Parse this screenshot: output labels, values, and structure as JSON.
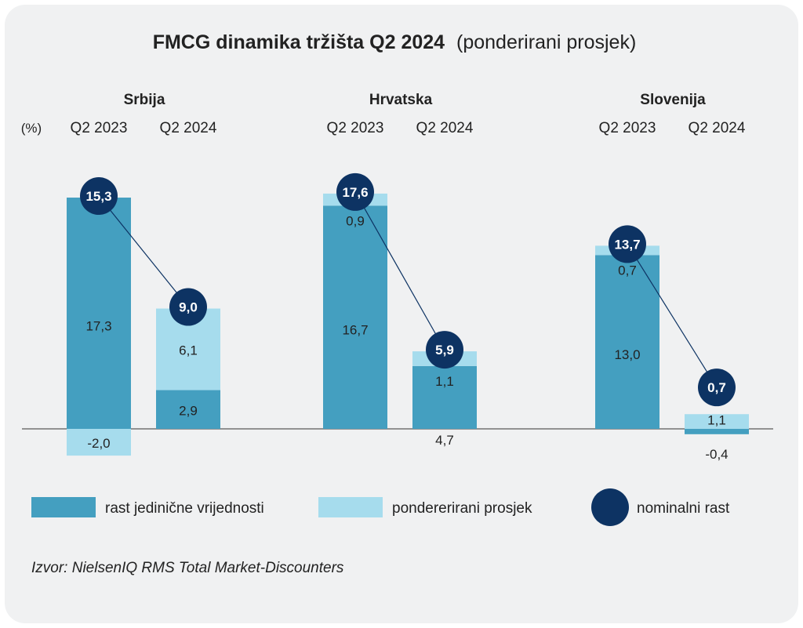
{
  "chart_data": {
    "type": "bar",
    "stacked": true,
    "title": "FMCG dinamika tržišta Q2 2024",
    "subtitle": "(ponderirani prosjek)",
    "unit_label": "(%)",
    "groups": [
      {
        "name": "Srbija",
        "periods": [
          {
            "label": "Q2 2023",
            "unit_value_growth": 17.3,
            "weighted_average": -2.0,
            "nominal_growth": 15.3
          },
          {
            "label": "Q2 2024",
            "unit_value_growth": 2.9,
            "weighted_average": 6.1,
            "nominal_growth": 9.0
          }
        ]
      },
      {
        "name": "Hrvatska",
        "periods": [
          {
            "label": "Q2 2023",
            "unit_value_growth": 16.7,
            "weighted_average": 0.9,
            "nominal_growth": 17.6
          },
          {
            "label": "Q2 2024",
            "unit_value_growth": 4.7,
            "weighted_average": 1.1,
            "nominal_growth": 5.9
          }
        ]
      },
      {
        "name": "Slovenija",
        "periods": [
          {
            "label": "Q2 2023",
            "unit_value_growth": 13.0,
            "weighted_average": 0.7,
            "nominal_growth": 13.7
          },
          {
            "label": "Q2 2024",
            "unit_value_growth": -0.4,
            "weighted_average": 1.1,
            "nominal_growth": 0.7
          }
        ]
      }
    ],
    "legend": {
      "unit_value_growth": "rast jedinične vrijednosti",
      "weighted_average": "pondererirani prosjek",
      "nominal_growth": "nominalni rast"
    },
    "colors": {
      "unit_value_growth": "#449fc0",
      "weighted_average": "#a6dced",
      "nominal_growth": "#0d3363",
      "text": "#222222"
    },
    "source": "Izvor: NielsenIQ RMS Total Market-Discounters"
  }
}
